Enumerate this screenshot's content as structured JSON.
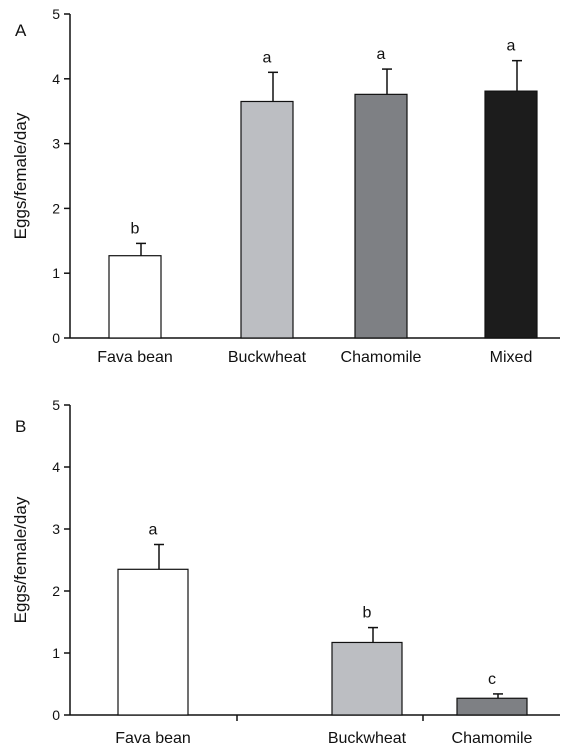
{
  "chart_data": [
    {
      "type": "bar",
      "panel": "A",
      "ylabel": "Eggs/female/day",
      "ylim": [
        0,
        5
      ],
      "yticks": [
        "0",
        "1",
        "2",
        "3",
        "4",
        "5"
      ],
      "categories": [
        "Fava bean",
        "Buckwheat",
        "Chamomile",
        "Mixed"
      ],
      "values": [
        1.27,
        3.65,
        3.76,
        3.81
      ],
      "errors": [
        0.19,
        0.45,
        0.39,
        0.47
      ],
      "letters": [
        "b",
        "a",
        "a",
        "a"
      ],
      "colors": [
        "#ffffff",
        "#bcbec2",
        "#7e8084",
        "#1c1c1c"
      ]
    },
    {
      "type": "bar",
      "panel": "B",
      "ylabel": "Eggs/female/day",
      "ylim": [
        0,
        5
      ],
      "yticks": [
        "0",
        "1",
        "2",
        "3",
        "4",
        "5"
      ],
      "categories": [
        "Fava bean",
        "Buckwheat",
        "Chamomile"
      ],
      "values": [
        2.35,
        1.17,
        0.27
      ],
      "errors": [
        0.4,
        0.24,
        0.07
      ],
      "letters": [
        "a",
        "b",
        "c"
      ],
      "colors": [
        "#ffffff",
        "#bcbec2",
        "#7e8084"
      ]
    }
  ]
}
